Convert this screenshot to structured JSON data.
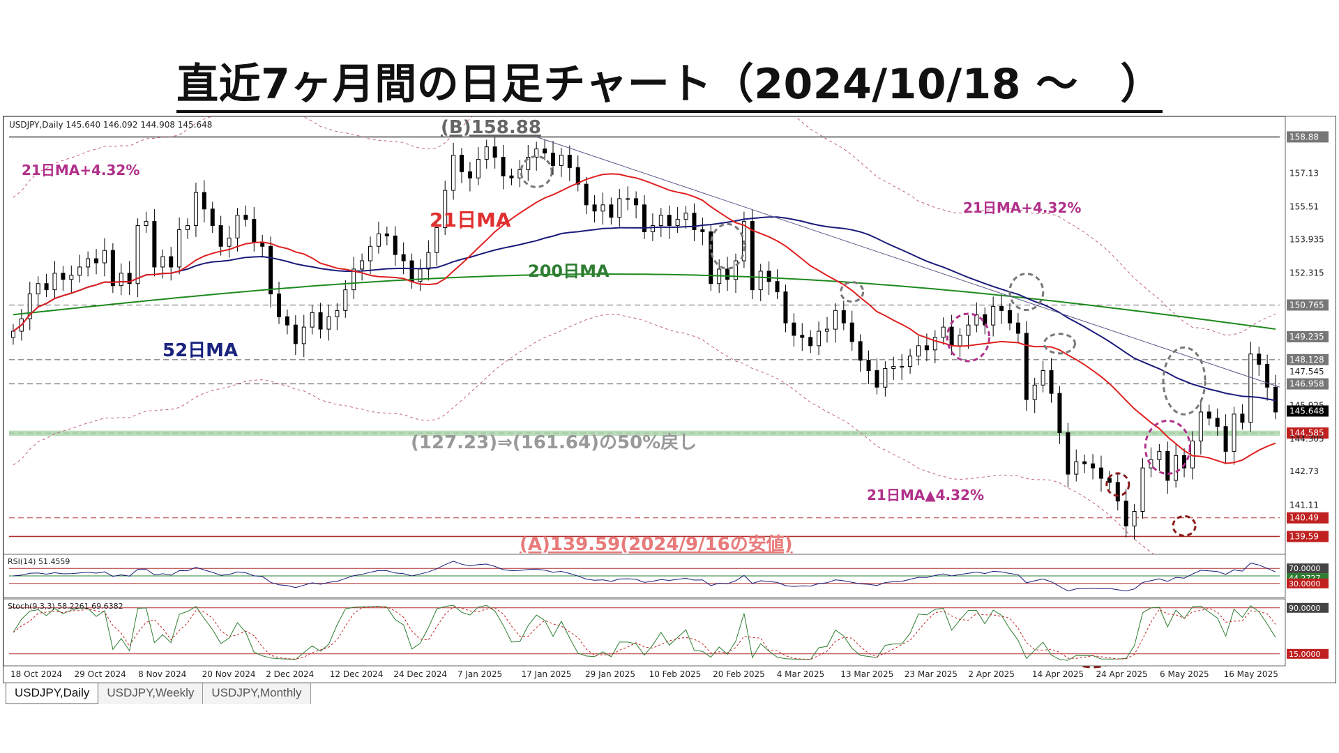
{
  "page_title": "直近7ヶ月間の日足チャート（2024/10/18 ～　）",
  "symbol_header": "USDJPY,Daily  145.640 146.092 144.908 145.648",
  "rsi_header": "RSI(14) 51.4559",
  "stoch_header": "Stoch(9,3,3) 58.2261 69.6382",
  "tabs": [
    "USDJPY,Daily",
    "USDJPY,Weekly",
    "USDJPY,Monthly"
  ],
  "annotations": {
    "b_high": "(B)158.88",
    "a_low": "(A)139.59(2024/9/16の安値)",
    "retrace": "(127.23)⇒(161.64)の50%戻し",
    "ma21_upper_left": "21日MA+4.32%",
    "ma21_upper_right": "21日MA+4.32%",
    "ma21_lower": "21日MA▲4.32%",
    "ma21": "21日MA",
    "ma52": "52日MA",
    "ma200": "200日MA"
  },
  "colors": {
    "ma21": "#e02020",
    "ma52": "#1a1a7a",
    "ma200": "#1e8a1e",
    "band": "#c06080",
    "ann_red": "#e03030",
    "ann_blue": "#1a237e",
    "ann_green": "#2e7d32",
    "ann_magenta": "#b0308a",
    "ann_grey": "#777777",
    "ann_darkred": "#8b1a1a"
  },
  "chart_data": {
    "type": "line",
    "title": "USDJPY,Daily",
    "ylim": [
      139.0,
      159.6
    ],
    "y_ticks": [
      158.88,
      157.13,
      155.51,
      153.935,
      152.315,
      150.765,
      149.235,
      148.128,
      147.545,
      146.958,
      145.925,
      145.648,
      144.585,
      144.305,
      142.73,
      141.11,
      140.49,
      139.59
    ],
    "highlight_ticks": [
      158.88,
      150.765,
      149.235,
      148.128,
      146.958,
      145.648,
      144.585,
      140.49,
      139.59
    ],
    "x_labels": [
      "18 Oct 2024",
      "29 Oct 2024",
      "8 Nov 2024",
      "20 Nov 2024",
      "2 Dec 2024",
      "12 Dec 2024",
      "24 Dec 2024",
      "7 Jan 2025",
      "17 Jan 2025",
      "29 Jan 2025",
      "10 Feb 2025",
      "20 Feb 2025",
      "4 Mar 2025",
      "13 Mar 2025",
      "23 Mar 2025",
      "2 Apr 2025",
      "14 Apr 2025",
      "24 Apr 2025",
      "6 May 2025",
      "16 May 2025"
    ],
    "horizontal_levels": [
      158.88,
      150.765,
      148.128,
      146.958,
      144.585,
      140.49,
      139.59
    ],
    "closes": [
      149.5,
      150.1,
      151.3,
      151.8,
      151.5,
      152.3,
      152.0,
      152.2,
      152.6,
      153.0,
      152.8,
      153.4,
      151.7,
      152.3,
      151.8,
      154.6,
      154.8,
      152.6,
      153.1,
      152.6,
      154.4,
      154.6,
      156.2,
      155.4,
      154.6,
      153.6,
      154.0,
      155.1,
      154.9,
      153.8,
      153.6,
      151.3,
      150.2,
      149.8,
      148.9,
      149.7,
      150.4,
      149.6,
      150.2,
      150.5,
      151.5,
      152.5,
      152.9,
      153.6,
      154.2,
      154.1,
      153.2,
      152.9,
      151.9,
      152.5,
      153.3,
      154.5,
      156.3,
      158.0,
      157.2,
      156.9,
      157.8,
      158.4,
      157.9,
      157.0,
      156.9,
      157.3,
      157.9,
      158.3,
      158.1,
      157.5,
      158.0,
      157.4,
      156.6,
      155.6,
      155.3,
      155.6,
      155.0,
      155.9,
      155.9,
      155.6,
      154.3,
      154.6,
      155.1,
      154.6,
      154.9,
      155.2,
      154.4,
      154.3,
      151.8,
      152.5,
      152.0,
      152.9,
      154.8,
      151.5,
      152.4,
      151.9,
      151.4,
      149.9,
      149.3,
      149.2,
      148.8,
      149.5,
      149.6,
      150.5,
      149.9,
      149.0,
      148.1,
      147.6,
      146.8,
      147.7,
      147.8,
      147.8,
      148.3,
      148.8,
      148.6,
      149.2,
      149.7,
      148.8,
      149.3,
      149.8,
      150.3,
      149.8,
      150.7,
      150.5,
      149.9,
      149.4,
      146.2,
      146.9,
      147.6,
      146.5,
      144.6,
      142.6,
      143.2,
      143.1,
      142.9,
      142.4,
      142.2,
      141.3,
      140.1,
      140.8,
      142.9,
      143.3,
      143.7,
      142.3,
      143.5,
      142.9,
      144.2,
      145.6,
      145.3,
      144.9,
      143.7,
      145.5,
      145.1,
      148.4,
      147.9,
      146.8,
      145.6
    ]
  }
}
